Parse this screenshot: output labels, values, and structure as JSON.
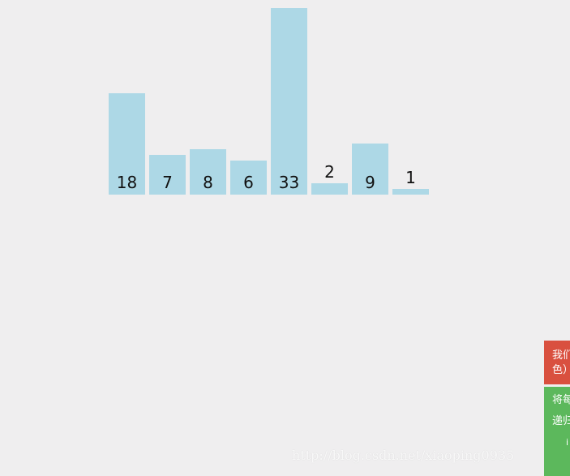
{
  "chart_data": {
    "type": "bar",
    "values": [
      18,
      7,
      8,
      6,
      33,
      2,
      9,
      1
    ],
    "ylim": [
      0,
      33
    ],
    "colors": {
      "bar": "#add8e6",
      "label": "#111111"
    }
  },
  "side_panel": {
    "red": {
      "color": "#d9503f",
      "lines": [
        "我们",
        "色）"
      ]
    },
    "green": {
      "color": "#5cb85c",
      "lines": [
        "将每",
        "递归",
        "i"
      ]
    }
  },
  "watermark": {
    "text": "http://blog.csdn.net/xiaoping0935"
  }
}
